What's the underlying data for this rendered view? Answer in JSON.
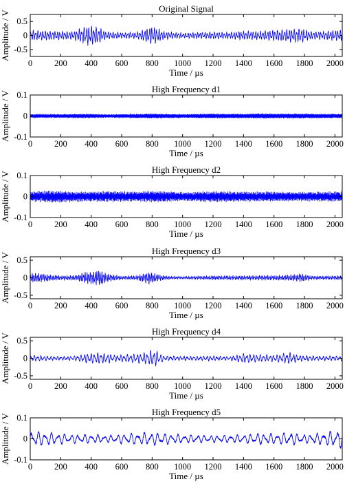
{
  "chart_data": [
    {
      "type": "line",
      "title": "Original Signal",
      "xlabel": "Time / µs",
      "ylabel": "Amplitude / V",
      "xlim": [
        0,
        2048
      ],
      "ylim": [
        -0.75,
        0.75
      ],
      "xticks": [
        0,
        200,
        400,
        600,
        800,
        1000,
        1200,
        1400,
        1600,
        1800,
        2000
      ],
      "yticks": [
        -0.5,
        0,
        0.5
      ],
      "ytick_labels": [
        "-0.5",
        "0",
        "0.5"
      ],
      "series": [
        {
          "color": "#0000ff",
          "carrier_period_us": 16,
          "amplitude_envelope": [
            [
              0,
              0.16
            ],
            [
              100,
              0.15
            ],
            [
              200,
              0.13
            ],
            [
              280,
              0.12
            ],
            [
              340,
              0.24
            ],
            [
              380,
              0.3
            ],
            [
              420,
              0.28
            ],
            [
              460,
              0.22
            ],
            [
              500,
              0.11
            ],
            [
              600,
              0.09
            ],
            [
              700,
              0.1
            ],
            [
              760,
              0.22
            ],
            [
              790,
              0.28
            ],
            [
              830,
              0.24
            ],
            [
              880,
              0.12
            ],
            [
              1000,
              0.08
            ],
            [
              1100,
              0.1
            ],
            [
              1200,
              0.11
            ],
            [
              1300,
              0.1
            ],
            [
              1400,
              0.14
            ],
            [
              1500,
              0.13
            ],
            [
              1600,
              0.17
            ],
            [
              1700,
              0.2
            ],
            [
              1780,
              0.22
            ],
            [
              1850,
              0.12
            ],
            [
              1950,
              0.14
            ],
            [
              2048,
              0.18
            ]
          ]
        }
      ]
    },
    {
      "type": "line",
      "title": "High Frequency d1",
      "xlabel": "Time / µs",
      "ylabel": "Amplitude / V",
      "xlim": [
        0,
        2048
      ],
      "ylim": [
        -0.1,
        0.1
      ],
      "xticks": [
        0,
        200,
        400,
        600,
        800,
        1000,
        1200,
        1400,
        1600,
        1800,
        2000
      ],
      "yticks": [
        -0.1,
        0,
        0.1
      ],
      "ytick_labels": [
        "-0.1",
        "0",
        "0.1"
      ],
      "series": [
        {
          "color": "#0000ff",
          "carrier_period_us": 3,
          "amplitude_envelope": [
            [
              0,
              0.008
            ],
            [
              200,
              0.008
            ],
            [
              400,
              0.009
            ],
            [
              500,
              0.007
            ],
            [
              700,
              0.009
            ],
            [
              800,
              0.01
            ],
            [
              1000,
              0.008
            ],
            [
              1200,
              0.01
            ],
            [
              1400,
              0.009
            ],
            [
              1500,
              0.011
            ],
            [
              1600,
              0.01
            ],
            [
              1800,
              0.01
            ],
            [
              2048,
              0.009
            ]
          ]
        }
      ]
    },
    {
      "type": "line",
      "title": "High Frequency d2",
      "xlabel": "Time / µs",
      "ylabel": "Amplitude / V",
      "xlim": [
        0,
        2048
      ],
      "ylim": [
        -0.1,
        0.1
      ],
      "xticks": [
        0,
        200,
        400,
        600,
        800,
        1000,
        1200,
        1400,
        1600,
        1800,
        2000
      ],
      "yticks": [
        -0.1,
        0,
        0.1
      ],
      "ytick_labels": [
        "-0.1",
        "0",
        "0.1"
      ],
      "series": [
        {
          "color": "#0000ff",
          "carrier_period_us": 5,
          "amplitude_envelope": [
            [
              0,
              0.02
            ],
            [
              150,
              0.025
            ],
            [
              300,
              0.02
            ],
            [
              500,
              0.022
            ],
            [
              700,
              0.02
            ],
            [
              850,
              0.024
            ],
            [
              1000,
              0.018
            ],
            [
              1200,
              0.022
            ],
            [
              1400,
              0.02
            ],
            [
              1600,
              0.02
            ],
            [
              1800,
              0.019
            ],
            [
              2048,
              0.02
            ]
          ]
        }
      ]
    },
    {
      "type": "line",
      "title": "High Frequency d3",
      "xlabel": "Time / µs",
      "ylabel": "Amplitude / V",
      "xlim": [
        0,
        2048
      ],
      "ylim": [
        -0.6,
        0.6
      ],
      "xticks": [
        0,
        200,
        400,
        600,
        800,
        1000,
        1200,
        1400,
        1600,
        1800,
        2000
      ],
      "yticks": [
        -0.5,
        0,
        0.5
      ],
      "ytick_labels": [
        "-0.5",
        "0",
        "0.5"
      ],
      "series": [
        {
          "color": "#0000ff",
          "carrier_period_us": 11,
          "amplitude_envelope": [
            [
              0,
              0.12
            ],
            [
              80,
              0.1
            ],
            [
              200,
              0.05
            ],
            [
              300,
              0.06
            ],
            [
              360,
              0.14
            ],
            [
              420,
              0.16
            ],
            [
              460,
              0.2
            ],
            [
              500,
              0.1
            ],
            [
              600,
              0.04
            ],
            [
              700,
              0.05
            ],
            [
              780,
              0.16
            ],
            [
              820,
              0.1
            ],
            [
              900,
              0.04
            ],
            [
              1000,
              0.03
            ],
            [
              1200,
              0.05
            ],
            [
              1400,
              0.05
            ],
            [
              1600,
              0.06
            ],
            [
              1700,
              0.07
            ],
            [
              1780,
              0.1
            ],
            [
              1850,
              0.04
            ],
            [
              2048,
              0.05
            ]
          ]
        }
      ]
    },
    {
      "type": "line",
      "title": "High Frequency d4",
      "xlabel": "Time / µs",
      "ylabel": "Amplitude / V",
      "xlim": [
        0,
        2048
      ],
      "ylim": [
        -0.6,
        0.6
      ],
      "xticks": [
        0,
        200,
        400,
        600,
        800,
        1000,
        1200,
        1400,
        1600,
        1800,
        2000
      ],
      "yticks": [
        -0.5,
        0,
        0.5
      ],
      "ytick_labels": [
        "-0.5",
        "0",
        "0.5"
      ],
      "series": [
        {
          "color": "#0000ff",
          "carrier_period_us": 22,
          "amplitude_envelope": [
            [
              0,
              0.08
            ],
            [
              100,
              0.06
            ],
            [
              200,
              0.04
            ],
            [
              300,
              0.06
            ],
            [
              380,
              0.12
            ],
            [
              460,
              0.14
            ],
            [
              560,
              0.08
            ],
            [
              650,
              0.1
            ],
            [
              760,
              0.14
            ],
            [
              810,
              0.22
            ],
            [
              880,
              0.06
            ],
            [
              1000,
              0.05
            ],
            [
              1200,
              0.06
            ],
            [
              1300,
              0.04
            ],
            [
              1400,
              0.12
            ],
            [
              1480,
              0.1
            ],
            [
              1560,
              0.08
            ],
            [
              1640,
              0.1
            ],
            [
              1700,
              0.15
            ],
            [
              1760,
              0.08
            ],
            [
              1900,
              0.05
            ],
            [
              2048,
              0.06
            ]
          ]
        }
      ]
    },
    {
      "type": "line",
      "title": "High Frequency d5",
      "xlabel": "Time / µs",
      "ylabel": "Amplitude / V",
      "xlim": [
        0,
        2048
      ],
      "ylim": [
        -0.1,
        0.1
      ],
      "xticks": [
        0,
        200,
        400,
        600,
        800,
        1000,
        1200,
        1400,
        1600,
        1800,
        2000
      ],
      "yticks": [
        -0.1,
        0,
        0.1
      ],
      "ytick_labels": [
        "-0.1",
        "0",
        "0.1"
      ],
      "series": [
        {
          "color": "#0000ff",
          "carrier_period_us": 44,
          "amplitude_envelope": [
            [
              0,
              0.035
            ],
            [
              100,
              0.028
            ],
            [
              200,
              0.022
            ],
            [
              300,
              0.018
            ],
            [
              400,
              0.02
            ],
            [
              500,
              0.015
            ],
            [
              600,
              0.02
            ],
            [
              700,
              0.025
            ],
            [
              800,
              0.028
            ],
            [
              900,
              0.022
            ],
            [
              1000,
              0.018
            ],
            [
              1200,
              0.015
            ],
            [
              1400,
              0.018
            ],
            [
              1500,
              0.025
            ],
            [
              1600,
              0.022
            ],
            [
              1700,
              0.028
            ],
            [
              1800,
              0.018
            ],
            [
              1900,
              0.025
            ],
            [
              2000,
              0.035
            ],
            [
              2048,
              0.04
            ]
          ]
        }
      ]
    }
  ]
}
